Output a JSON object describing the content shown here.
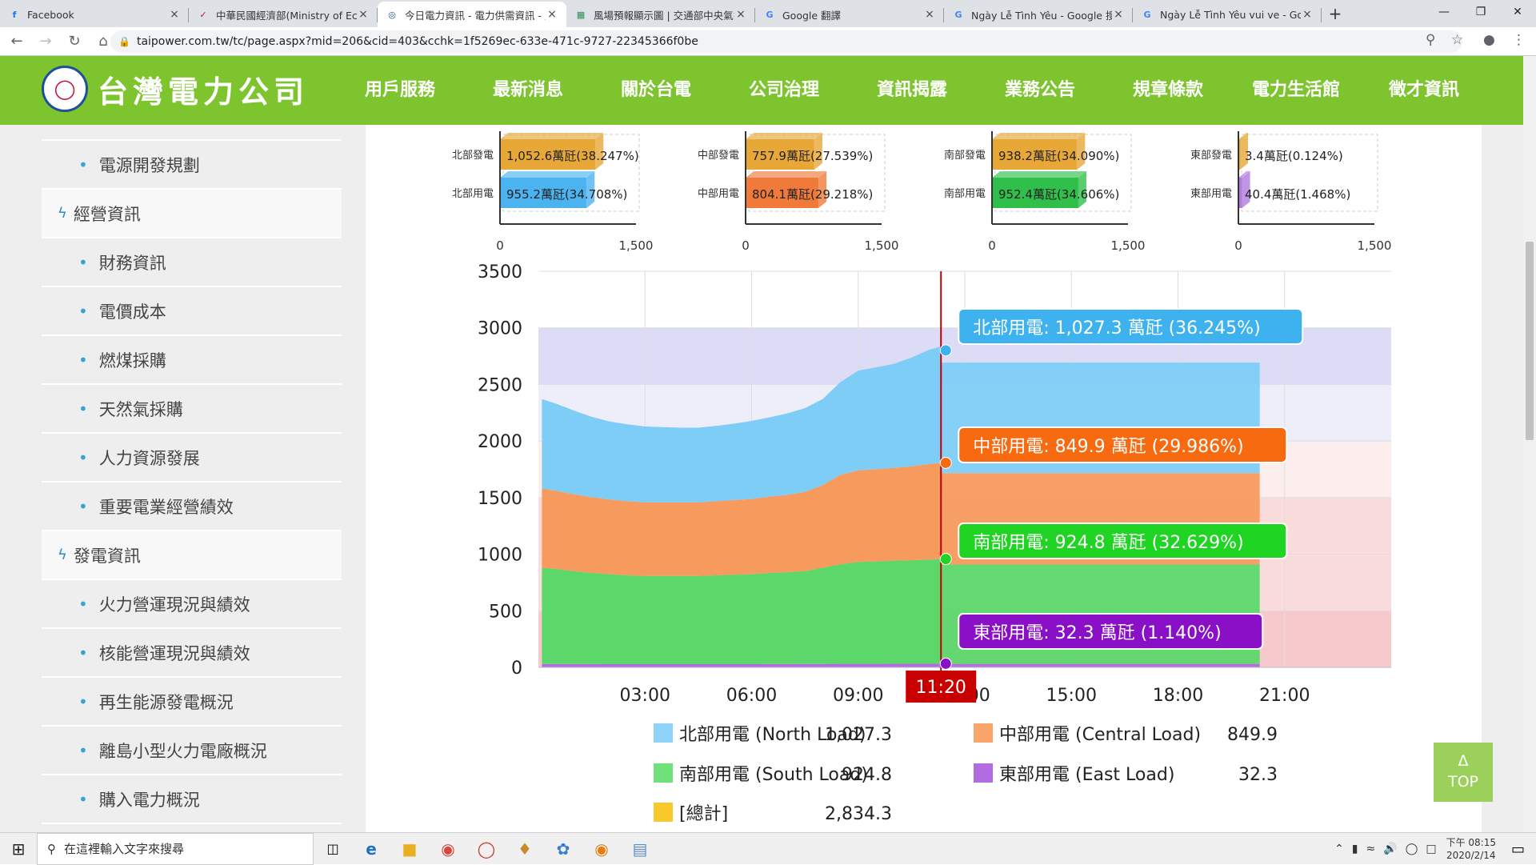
{
  "browser": {
    "tabs": [
      {
        "title": "Facebook",
        "favicon": "f",
        "fav_color": "#1877f2",
        "active": false
      },
      {
        "title": "中華民國經濟部(Ministry of Eco",
        "favicon": "✓",
        "fav_color": "#c8102e",
        "active": false
      },
      {
        "title": "今日電力資訊 - 電力供需資訊 - 主",
        "favicon": "◎",
        "fav_color": "#1d4f9b",
        "active": true
      },
      {
        "title": "風場預報顯示圖 | 交通部中央氣象",
        "favicon": "▦",
        "fav_color": "#2e8b57",
        "active": false
      },
      {
        "title": "Google 翻譯",
        "favicon": "G",
        "fav_color": "#4285f4",
        "active": false
      },
      {
        "title": "Ngày Lễ Tình Yêu - Google 搜尋",
        "favicon": "G",
        "fav_color": "#4285f4",
        "active": false
      },
      {
        "title": "Ngày Lễ Tình Yêu vui ve - Goog",
        "favicon": "G",
        "fav_color": "#4285f4",
        "active": false
      }
    ],
    "new_tab": "+",
    "url": "taipower.com.tw/tc/page.aspx?mid=206&cid=403&cchk=1f5269ec-633e-471c-9727-22345366f0be"
  },
  "site": {
    "logo_text": "台灣電力公司",
    "nav": [
      "用戶服務",
      "最新消息",
      "關於台電",
      "公司治理",
      "資訊揭露",
      "業務公告",
      "規章條款",
      "電力生活館",
      "徵才資訊"
    ],
    "active_nav": "資訊揭露"
  },
  "sidebar": {
    "items": [
      {
        "label": "電源開發規劃",
        "type": "sub"
      },
      {
        "label": "經營資訊",
        "type": "cat"
      },
      {
        "label": "財務資訊",
        "type": "sub"
      },
      {
        "label": "電價成本",
        "type": "sub"
      },
      {
        "label": "燃煤採購",
        "type": "sub"
      },
      {
        "label": "天然氣採購",
        "type": "sub"
      },
      {
        "label": "人力資源發展",
        "type": "sub"
      },
      {
        "label": "重要電業經營績效",
        "type": "sub"
      },
      {
        "label": "發電資訊",
        "type": "cat"
      },
      {
        "label": "火力營運現況與績效",
        "type": "sub"
      },
      {
        "label": "核能營運現況與績效",
        "type": "sub"
      },
      {
        "label": "再生能源發電概況",
        "type": "sub"
      },
      {
        "label": "離島小型火力電廠概況",
        "type": "sub"
      },
      {
        "label": "購入電力概況",
        "type": "sub"
      }
    ]
  },
  "top_button": {
    "arrow": "Δ",
    "label": "TOP"
  },
  "taskbar": {
    "search_placeholder": "在這裡輸入文字來搜尋",
    "time": "下午 08:15",
    "date": "2020/2/14"
  },
  "chart_data": [
    {
      "type": "bar",
      "region": "北部",
      "categories": [
        "北部發電",
        "北部用電"
      ],
      "values": [
        1052.6,
        955.2
      ],
      "labels": [
        "1,052.6萬瓩(38.247%)",
        "955.2萬瓩(34.708%)"
      ],
      "colors": [
        "#e8a838",
        "#4bb3ef"
      ],
      "xticks": [
        "0",
        "1,500"
      ],
      "xlim": [
        0,
        1500
      ]
    },
    {
      "type": "bar",
      "region": "中部",
      "categories": [
        "中部發電",
        "中部用電"
      ],
      "values": [
        757.9,
        804.1
      ],
      "labels": [
        "757.9萬瓩(27.539%)",
        "804.1萬瓩(29.218%)"
      ],
      "colors": [
        "#e8a838",
        "#f07a3a"
      ],
      "xticks": [
        "0",
        "1,500"
      ],
      "xlim": [
        0,
        1500
      ]
    },
    {
      "type": "bar",
      "region": "南部",
      "categories": [
        "南部發電",
        "南部用電"
      ],
      "values": [
        938.2,
        952.4
      ],
      "labels": [
        "938.2萬瓩(34.090%)",
        "952.4萬瓩(34.606%)"
      ],
      "colors": [
        "#e8a838",
        "#2fbf4a"
      ],
      "xticks": [
        "0",
        "1,500"
      ],
      "xlim": [
        0,
        1500
      ]
    },
    {
      "type": "bar",
      "region": "東部",
      "categories": [
        "東部發電",
        "東部用電"
      ],
      "values": [
        3.4,
        40.4
      ],
      "labels": [
        "3.4萬瓩(0.124%)",
        "40.4萬瓩(1.468%)"
      ],
      "colors": [
        "#e8a838",
        "#b07ae0"
      ],
      "xticks": [
        "0",
        "1,500"
      ],
      "xlim": [
        0,
        1500
      ]
    },
    {
      "type": "area",
      "stacked": true,
      "ylim": [
        0,
        3500
      ],
      "yticks": [
        0,
        500,
        1000,
        1500,
        2000,
        2500,
        3000,
        3500
      ],
      "xlim": [
        0,
        24
      ],
      "xticks": [
        "03:00",
        "06:00",
        "09:00",
        "12:00",
        "15:00",
        "18:00",
        "21:00"
      ],
      "xtick_hours": [
        3,
        6,
        9,
        12,
        15,
        18,
        21
      ],
      "cursor_label": "11:20",
      "cursor_hour": 11.33,
      "forecast_end_hour": 20.3,
      "bands": [
        {
          "from": 0,
          "to": 500,
          "color": "#f6c9cc"
        },
        {
          "from": 500,
          "to": 1500,
          "color": "#fbdcdc"
        },
        {
          "from": 1500,
          "to": 2000,
          "color": "#fdeeee"
        },
        {
          "from": 2000,
          "to": 2500,
          "color": "#eeeefa"
        },
        {
          "from": 2500,
          "to": 3000,
          "color": "#dcdcf6"
        }
      ],
      "hours": [
        0.1,
        0.5,
        1,
        1.5,
        2,
        2.5,
        3,
        3.5,
        4,
        4.5,
        5,
        5.5,
        6,
        6.5,
        7,
        7.5,
        8,
        8.5,
        9,
        9.5,
        10,
        10.5,
        11,
        11.33
      ],
      "series": [
        {
          "name": "北部用電 (North Load)",
          "color": "#7dcdf7",
          "values": [
            790,
            770,
            740,
            710,
            690,
            680,
            670,
            665,
            660,
            660,
            665,
            675,
            690,
            700,
            720,
            740,
            760,
            820,
            880,
            900,
            920,
            960,
            1010,
            1027.3
          ]
        },
        {
          "name": "中部用電 (Central Load)",
          "color": "#f79a5e",
          "values": [
            700,
            690,
            680,
            670,
            660,
            655,
            650,
            650,
            650,
            650,
            655,
            660,
            665,
            675,
            685,
            700,
            730,
            790,
            810,
            815,
            820,
            830,
            845,
            849.9
          ]
        },
        {
          "name": "南部用電 (South Load)",
          "color": "#5cd86a",
          "values": [
            850,
            840,
            820,
            805,
            795,
            785,
            780,
            780,
            780,
            780,
            785,
            790,
            795,
            805,
            810,
            820,
            850,
            880,
            900,
            905,
            910,
            915,
            920,
            924.8
          ]
        },
        {
          "name": "東部用電 (East Load)",
          "color": "#b06ce0",
          "values": [
            30,
            30,
            29,
            29,
            28,
            28,
            28,
            28,
            28,
            28,
            28,
            28,
            28,
            29,
            29,
            30,
            30,
            31,
            31,
            31,
            32,
            32,
            32,
            32.3
          ]
        }
      ],
      "forecast_color": {
        "north": "#7dcdf7",
        "central": "#f79a5e",
        "south": "#5cd86a"
      },
      "tooltips": [
        {
          "text": "北部用電: 1,027.3 萬瓩 (36.245%)",
          "bg": "#3db2ee",
          "y": 2801.3
        },
        {
          "text": "中部用電: 849.9 萬瓩 (29.986%)",
          "bg": "#f76a10",
          "y": 1807.0
        },
        {
          "text": "南部用電: 924.8 萬瓩 (32.629%)",
          "bg": "#1fd422",
          "y": 957.1
        },
        {
          "text": "東部用電: 32.3 萬瓩 (1.140%)",
          "bg": "#8a10c8",
          "y": 32.3
        }
      ],
      "legend": [
        {
          "label": "北部用電 (North Load)",
          "value": "1,027.3",
          "color": "#8fd3fb"
        },
        {
          "label": "中部用電 (Central Load)",
          "value": "849.9",
          "color": "#f9a46a"
        },
        {
          "label": "南部用電 (South Load)",
          "value": "924.8",
          "color": "#6fe07a"
        },
        {
          "label": "東部用電 (East Load)",
          "value": "32.3",
          "color": "#b06ce0"
        },
        {
          "label": "[總計]",
          "value": "2,834.3",
          "color": "#f9c82a"
        }
      ]
    }
  ]
}
